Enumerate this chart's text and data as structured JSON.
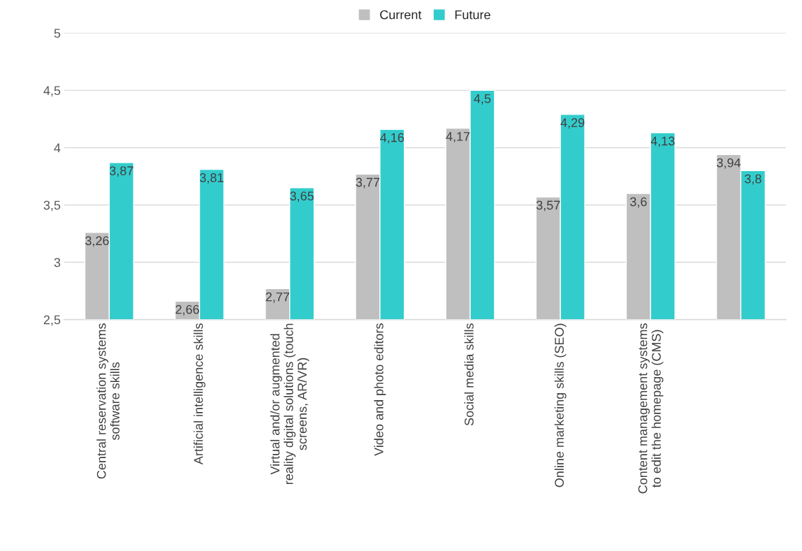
{
  "chart_data": {
    "type": "bar",
    "categories": [
      "Central reservation systems\nsoftware skills",
      "Artificial intelligence skills",
      "Virtual and/or augmented\nreality digital solutions (touch\nscreens, AR/VR)",
      "Video and photo editors",
      "Social media skills",
      "Online marketing skills (SEO)",
      "Content management systems\nto edit the homepage (CMS)",
      null
    ],
    "series": [
      {
        "name": "Current",
        "color": "#bfbfbf",
        "values": [
          3.26,
          2.66,
          2.77,
          3.77,
          4.17,
          3.57,
          3.6,
          3.94
        ],
        "value_labels": [
          "3,26",
          "2,66",
          "2,77",
          "3,77",
          "4,17",
          "3,57",
          "3,6",
          "3,94"
        ]
      },
      {
        "name": "Future",
        "color": "#33cccc",
        "values": [
          3.87,
          3.81,
          3.65,
          4.16,
          4.5,
          4.29,
          4.13,
          3.8
        ],
        "value_labels": [
          "3,87",
          "3,81",
          "3,65",
          "4,16",
          "4,5",
          "4,29",
          "4,13",
          "3,8"
        ]
      }
    ],
    "ylim": [
      2.5,
      5
    ],
    "yticks": [
      {
        "value": 2.5,
        "label": "2,5"
      },
      {
        "value": 3,
        "label": "3"
      },
      {
        "value": 3.5,
        "label": "3,5"
      },
      {
        "value": 4,
        "label": "4"
      },
      {
        "value": 4.5,
        "label": "4,5"
      },
      {
        "value": 5,
        "label": "5"
      }
    ],
    "grid": "y",
    "legend": "top"
  }
}
